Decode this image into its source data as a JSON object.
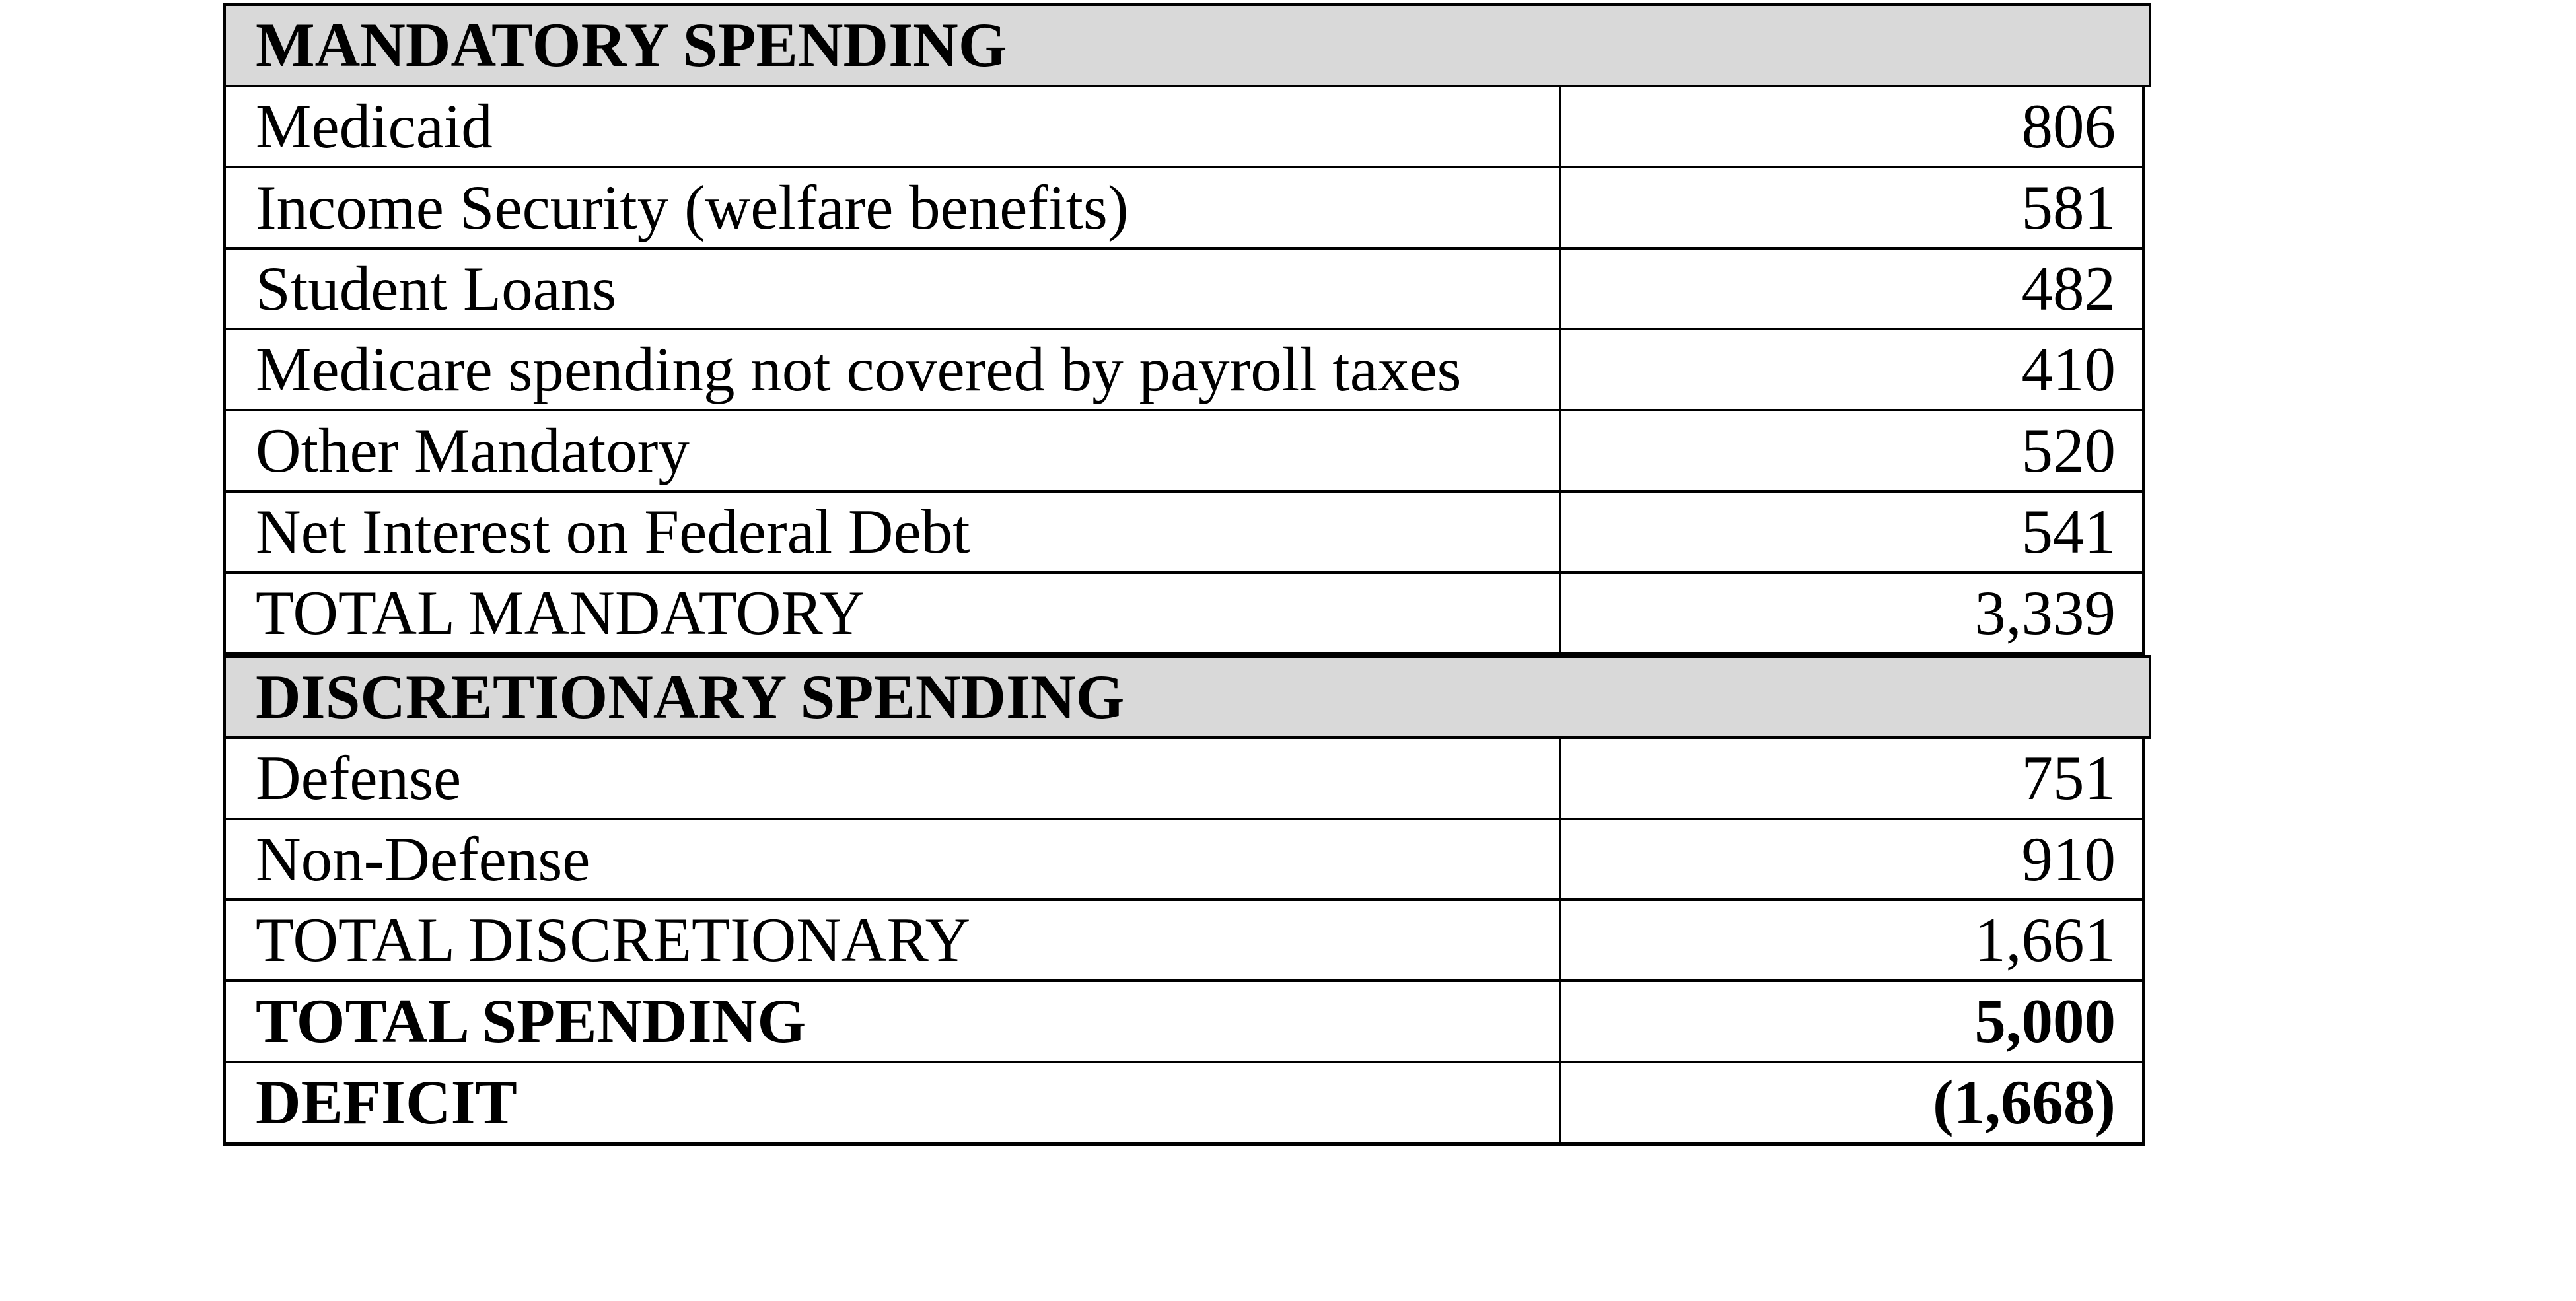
{
  "document": {
    "background_color": "#ffffff",
    "text_color": "#000000",
    "table_border_color": "#000000",
    "section_header_background": "#d9d9d9"
  },
  "table": {
    "rows": [
      {
        "type": "section_header",
        "label": "MANDATORY SPENDING"
      },
      {
        "type": "item",
        "label": "Medicaid",
        "value": "806"
      },
      {
        "type": "item",
        "label": "Income Security (welfare benefits)",
        "value": "581"
      },
      {
        "type": "item",
        "label": "Student Loans",
        "value": "482"
      },
      {
        "type": "item",
        "label": "Medicare spending not covered by payroll taxes",
        "value": "410"
      },
      {
        "type": "item",
        "label": "Other Mandatory",
        "value": "520"
      },
      {
        "type": "item",
        "label": "Net Interest on Federal Debt",
        "value": "541"
      },
      {
        "type": "item",
        "label": "TOTAL MANDATORY",
        "value": "3,339"
      },
      {
        "type": "section_header",
        "label": "DISCRETIONARY SPENDING"
      },
      {
        "type": "item",
        "label": "Defense",
        "value": "751"
      },
      {
        "type": "item",
        "label": "Non-Defense",
        "value": "910"
      },
      {
        "type": "item",
        "label": "TOTAL DISCRETIONARY",
        "value": "1,661"
      },
      {
        "type": "item",
        "bold": true,
        "label": "TOTAL SPENDING",
        "value": "5,000"
      },
      {
        "type": "item",
        "bold": true,
        "label": "DEFICIT",
        "value": "(1,668)"
      }
    ]
  }
}
